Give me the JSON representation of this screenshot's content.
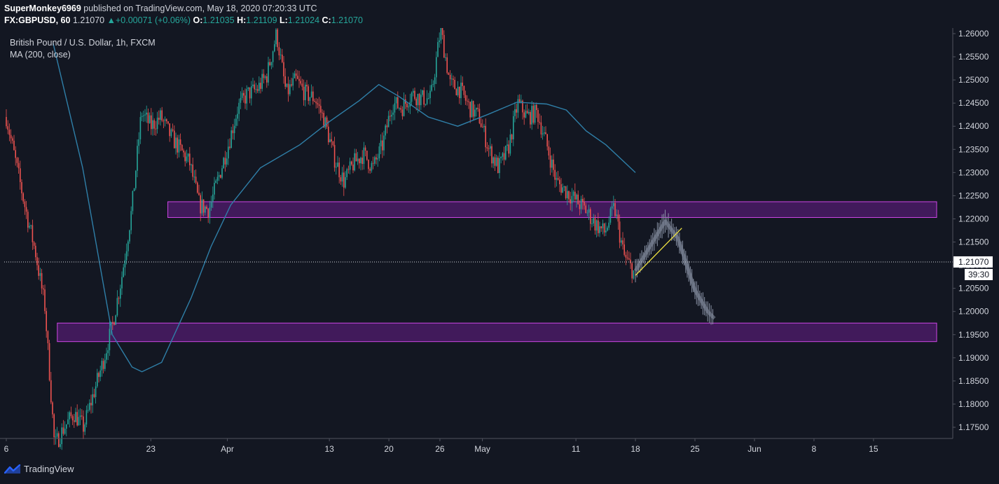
{
  "header": {
    "author": "SuperMonkey6969",
    "published_text": "published on TradingView.com, May 18, 2020 07:20:33 UTC",
    "symbol": "FX:GBPUSD, 60",
    "last": "1.21070",
    "change": "+0.00071 (+0.06%)",
    "open_label": "O:",
    "open": "1.21035",
    "high_label": "H:",
    "high": "1.21109",
    "low_label": "L:",
    "low": "1.21024",
    "close_label": "C:",
    "close": "1.21070"
  },
  "legend": {
    "title": "British Pound / U.S. Dollar, 1h, FXCM",
    "indicator": "MA (200, close)"
  },
  "price_axis": {
    "last_price_label": "1.21070",
    "countdown_label": "39:30"
  },
  "footer": {
    "brand": "TradingView"
  },
  "colors": {
    "background": "#131722",
    "up": "#26a69a",
    "down": "#ef5350",
    "ma": "#2f7fa8",
    "zone_fill": "#7b1fa2",
    "zone_stroke": "#ce47e6",
    "trendline": "#f0e442",
    "projection": "#8a93a6"
  },
  "chart_data": {
    "type": "candlestick",
    "interval": "1h",
    "ylim": [
      1.1713,
      1.2615
    ],
    "y_ticks": [
      1.26,
      1.255,
      1.25,
      1.245,
      1.24,
      1.235,
      1.23,
      1.225,
      1.22,
      1.215,
      1.21,
      1.205,
      1.2,
      1.195,
      1.19,
      1.185,
      1.18,
      1.175
    ],
    "y_tick_labels": [
      "1.26000",
      "1.25500",
      "1.25000",
      "1.24500",
      "1.24000",
      "1.23500",
      "1.23000",
      "1.22500",
      "1.22000",
      "1.21500",
      "1.21000",
      "1.20500",
      "1.20000",
      "1.19500",
      "1.19000",
      "1.18500",
      "1.18000",
      "1.17500"
    ],
    "x_ticks": [
      {
        "label": "6",
        "x": 0
      },
      {
        "label": "23",
        "x": 17
      },
      {
        "label": "Apr",
        "x": 26
      },
      {
        "label": "13",
        "x": 38
      },
      {
        "label": "20",
        "x": 45
      },
      {
        "label": "26",
        "x": 51
      },
      {
        "label": "May",
        "x": 56
      },
      {
        "label": "11",
        "x": 67
      },
      {
        "label": "18",
        "x": 74
      },
      {
        "label": "25",
        "x": 81
      },
      {
        "label": "Jun",
        "x": 88
      },
      {
        "label": "8",
        "x": 95
      },
      {
        "label": "15",
        "x": 102
      }
    ],
    "x_range": [
      0,
      112
    ],
    "price_path": [
      [
        0,
        1.242
      ],
      [
        1,
        1.232
      ],
      [
        2,
        1.222
      ],
      [
        3,
        1.213
      ],
      [
        4,
        1.201
      ],
      [
        5,
        1.171
      ],
      [
        6,
        1.175
      ],
      [
        7,
        1.178
      ],
      [
        8,
        1.175
      ],
      [
        9,
        1.182
      ],
      [
        10,
        1.189
      ],
      [
        11,
        1.197
      ],
      [
        12,
        1.208
      ],
      [
        13,
        1.222
      ],
      [
        14,
        1.243
      ],
      [
        15,
        1.24
      ],
      [
        16,
        1.242
      ],
      [
        17,
        1.238
      ],
      [
        18,
        1.235
      ],
      [
        19,
        1.232
      ],
      [
        20,
        1.223
      ],
      [
        21,
        1.222
      ],
      [
        22,
        1.229
      ],
      [
        23,
        1.236
      ],
      [
        24,
        1.244
      ],
      [
        25,
        1.247
      ],
      [
        26,
        1.248
      ],
      [
        27,
        1.251
      ],
      [
        28,
        1.26
      ],
      [
        29,
        1.247
      ],
      [
        30,
        1.25
      ],
      [
        31,
        1.247
      ],
      [
        32,
        1.246
      ],
      [
        33,
        1.241
      ],
      [
        34,
        1.233
      ],
      [
        35,
        1.228
      ],
      [
        36,
        1.232
      ],
      [
        37,
        1.234
      ],
      [
        38,
        1.231
      ],
      [
        39,
        1.236
      ],
      [
        40,
        1.245
      ],
      [
        41,
        1.244
      ],
      [
        42,
        1.247
      ],
      [
        43,
        1.246
      ],
      [
        44,
        1.246
      ],
      [
        45,
        1.261
      ],
      [
        46,
        1.249
      ],
      [
        47,
        1.248
      ],
      [
        48,
        1.244
      ],
      [
        49,
        1.242
      ],
      [
        50,
        1.235
      ],
      [
        51,
        1.231
      ],
      [
        52,
        1.235
      ],
      [
        53,
        1.245
      ],
      [
        54,
        1.242
      ],
      [
        55,
        1.243
      ],
      [
        56,
        1.236
      ],
      [
        57,
        1.228
      ],
      [
        58,
        1.226
      ],
      [
        59,
        1.224
      ],
      [
        60,
        1.222
      ],
      [
        61,
        1.219
      ],
      [
        62,
        1.217
      ],
      [
        63,
        1.2225
      ],
      [
        64,
        1.212
      ],
      [
        65,
        1.2085
      ]
    ],
    "price_x_map": [
      [
        0,
        0
      ],
      [
        65,
        74
      ]
    ],
    "ma200": [
      [
        5,
        1.258
      ],
      [
        8,
        1.231
      ],
      [
        11,
        1.195
      ],
      [
        13,
        1.188
      ],
      [
        14,
        1.187
      ],
      [
        16,
        1.189
      ],
      [
        19,
        1.203
      ],
      [
        21,
        1.214
      ],
      [
        23,
        1.223
      ],
      [
        26,
        1.231
      ],
      [
        30,
        1.236
      ],
      [
        33,
        1.241
      ],
      [
        36,
        1.2455
      ],
      [
        38,
        1.249
      ],
      [
        40,
        1.2465
      ],
      [
        43,
        1.242
      ],
      [
        46,
        1.24
      ],
      [
        49,
        1.2425
      ],
      [
        52,
        1.2452
      ],
      [
        55,
        1.2448
      ],
      [
        57,
        1.2435
      ],
      [
        59,
        1.239
      ],
      [
        61,
        1.236
      ],
      [
        63,
        1.232
      ],
      [
        64,
        1.23
      ]
    ],
    "ma200_x_map": [
      [
        5,
        5.5
      ],
      [
        64,
        74
      ]
    ],
    "zones": [
      {
        "y_top": 1.2237,
        "y_bottom": 1.2203,
        "x_start": 19,
        "x_end": 110
      },
      {
        "y_top": 1.1975,
        "y_bottom": 1.1935,
        "x_start": 6,
        "x_end": 110
      }
    ],
    "projection_path": [
      [
        74,
        1.2088
      ],
      [
        77.5,
        1.2195
      ],
      [
        79,
        1.2158
      ],
      [
        81,
        1.2046
      ],
      [
        82.5,
        1.2
      ],
      [
        83.3,
        1.1985
      ]
    ],
    "trendline": [
      [
        74,
        1.2078
      ],
      [
        78.3,
        1.2177
      ]
    ],
    "last_price": 1.2107
  }
}
